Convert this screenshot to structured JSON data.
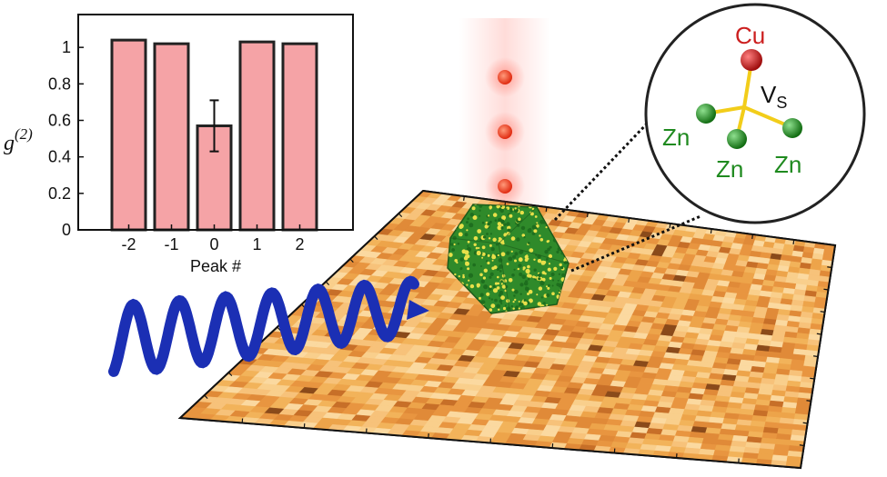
{
  "colors": {
    "bar_fill": "#f5a3a6",
    "bar_stroke": "#222222",
    "wave": "#1b2fb4",
    "photon": "#e8361f",
    "cu_atom": "#cc1f1f",
    "zn_atom": "#1f8a1f",
    "bond": "#f2cd1a",
    "substrate_base": "#f2b35a",
    "nanocrystal_green": "#2f8a2a",
    "nanocrystal_yellow": "#e8e04a"
  },
  "chart_data": {
    "type": "bar",
    "categories": [
      "-2",
      "-1",
      "0",
      "1",
      "2"
    ],
    "values": [
      1.04,
      1.02,
      0.57,
      1.03,
      1.02
    ],
    "error_bars": [
      null,
      null,
      0.14,
      null,
      null
    ],
    "ylabel_base": "g",
    "ylabel_sup": "(2)",
    "xlabel": "Peak #",
    "ylim": [
      0,
      1.18
    ],
    "yticks": [
      "0",
      "0.2",
      "0.4",
      "0.6",
      "0.8",
      "1"
    ],
    "ytick_values": [
      0,
      0.2,
      0.4,
      0.6,
      0.8,
      1
    ],
    "grid": false
  },
  "inset": {
    "cu_label": "Cu",
    "vs_label_main": "V",
    "vs_label_sub": "S",
    "zn_labels": [
      "Zn",
      "Zn",
      "Zn"
    ]
  },
  "illustration": {
    "photon_count": 3,
    "wave_icon": "light-wave-arrow-icon",
    "substrate_icon": "sample-surface-map",
    "crystal_icon": "nanocrystal-icon"
  }
}
